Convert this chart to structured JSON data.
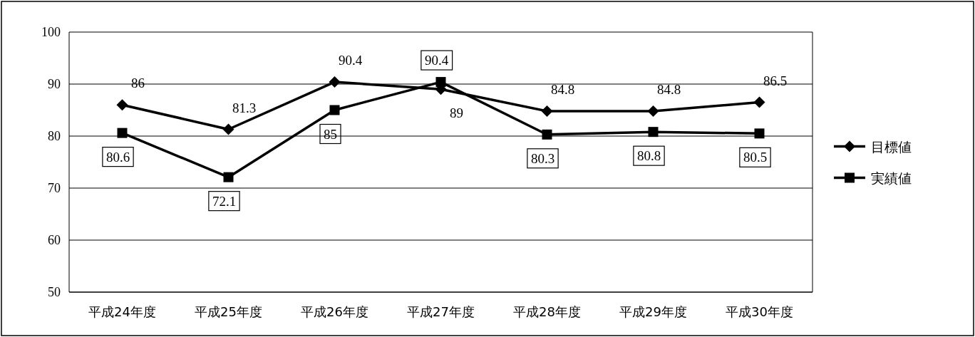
{
  "chart_data": {
    "type": "line",
    "categories": [
      "平成24年度",
      "平成25年度",
      "平成26年度",
      "平成27年度",
      "平成28年度",
      "平成29年度",
      "平成30年度"
    ],
    "series": [
      {
        "name": "目標値",
        "color": "#000000",
        "marker": "diamond",
        "values": [
          86,
          81.3,
          90.4,
          89,
          84.8,
          84.8,
          86.5
        ]
      },
      {
        "name": "実績値",
        "color": "#000000",
        "marker": "square",
        "values": [
          80.6,
          72.1,
          85,
          90.4,
          80.3,
          80.8,
          80.5
        ]
      }
    ],
    "ylim": [
      50,
      100
    ],
    "yticks": [
      50,
      60,
      70,
      80,
      90,
      100
    ],
    "grid": "y",
    "legend": "right",
    "data_labels": true
  }
}
